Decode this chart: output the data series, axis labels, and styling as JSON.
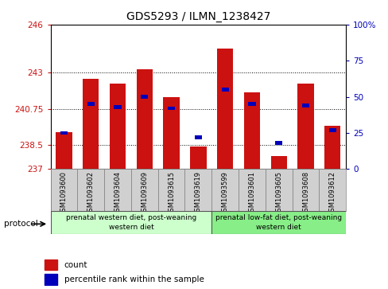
{
  "title": "GDS5293 / ILMN_1238427",
  "samples": [
    "GSM1093600",
    "GSM1093602",
    "GSM1093604",
    "GSM1093609",
    "GSM1093615",
    "GSM1093619",
    "GSM1093599",
    "GSM1093601",
    "GSM1093605",
    "GSM1093608",
    "GSM1093612"
  ],
  "counts": [
    239.3,
    242.6,
    242.3,
    243.2,
    241.5,
    238.4,
    244.5,
    241.8,
    237.8,
    242.3,
    239.7
  ],
  "percentiles": [
    25,
    45,
    43,
    50,
    42,
    22,
    55,
    45,
    18,
    44,
    27
  ],
  "ymin": 237,
  "ymax": 246,
  "yticks": [
    237,
    238.5,
    240.75,
    243,
    246
  ],
  "ytick_labels": [
    "237",
    "238.5",
    "240.75",
    "243",
    "246"
  ],
  "right_yticks": [
    0,
    25,
    50,
    75,
    100
  ],
  "right_ytick_labels": [
    "0",
    "25",
    "50",
    "75",
    "100%"
  ],
  "bar_color": "#cc1111",
  "percentile_color": "#0000bb",
  "group1_label": "prenatal western diet, post-weaning\nwestern diet",
  "group2_label": "prenatal low-fat diet, post-weaning\nwestern diet",
  "group1_indices": [
    0,
    1,
    2,
    3,
    4,
    5
  ],
  "group2_indices": [
    6,
    7,
    8,
    9,
    10
  ],
  "group1_color": "#ccffcc",
  "group2_color": "#88ee88",
  "protocol_label": "protocol",
  "legend_count_label": "count",
  "legend_percentile_label": "percentile rank within the sample",
  "bar_width": 0.6,
  "figsize": [
    4.89,
    3.63
  ],
  "dpi": 100
}
